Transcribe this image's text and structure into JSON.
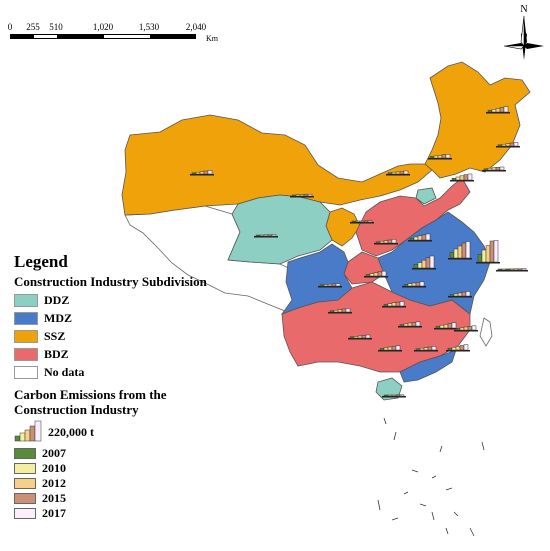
{
  "scale_bar": {
    "labels": [
      "0",
      "255",
      "510",
      "1,020",
      "1,530",
      "2,040"
    ],
    "unit": "Km"
  },
  "north_arrow": {
    "label": "N",
    "icon": "north-arrow-icon"
  },
  "legend": {
    "title": "Legend",
    "subdivision_heading": "Construction Industry Subdivision",
    "subdivision_items": [
      {
        "label": "DDZ",
        "color": "#8ecfc4"
      },
      {
        "label": "MDZ",
        "color": "#4a7bc8"
      },
      {
        "label": "SSZ",
        "color": "#f0a20a"
      },
      {
        "label": "BDZ",
        "color": "#e96a6a"
      },
      {
        "label": "No data",
        "color": "#ffffff"
      }
    ],
    "emissions_heading": "Carbon Emissions from the Construction Industry",
    "size_label": "220,000 t",
    "years": [
      {
        "label": "2007",
        "color": "#5a8a3c"
      },
      {
        "label": "2010",
        "color": "#f2efa0"
      },
      {
        "label": "2012",
        "color": "#f6cf88"
      },
      {
        "label": "2015",
        "color": "#c98f78"
      },
      {
        "label": "2017",
        "color": "#fbeefc"
      }
    ]
  },
  "map_colors": {
    "DDZ": "#8ecfc4",
    "MDZ": "#4a7bc8",
    "SSZ": "#f0a20a",
    "BDZ": "#e96a6a",
    "no_data": "#ffffff",
    "border": "#555555"
  },
  "province_bars": [
    {
      "zone": "SSZ",
      "values": [
        0.06,
        0.09,
        0.12,
        0.15,
        0.18
      ]
    },
    {
      "zone": "SSZ",
      "values": [
        0.04,
        0.06,
        0.08,
        0.1,
        0.12
      ]
    },
    {
      "zone": "SSZ",
      "values": [
        0.04,
        0.06,
        0.08,
        0.09,
        0.1
      ]
    },
    {
      "zone": "SSZ",
      "values": [
        0.05,
        0.07,
        0.09,
        0.11,
        0.12
      ]
    },
    {
      "zone": "SSZ",
      "values": [
        0.04,
        0.06,
        0.07,
        0.08,
        0.1
      ]
    },
    {
      "zone": "SSZ",
      "values": [
        0.03,
        0.04,
        0.05,
        0.06,
        0.06
      ]
    },
    {
      "zone": "SSZ",
      "values": [
        0.04,
        0.06,
        0.08,
        0.1,
        0.12
      ]
    },
    {
      "zone": "BDZ",
      "values": [
        0.06,
        0.1,
        0.14,
        0.18,
        0.2
      ]
    },
    {
      "zone": "DDZ",
      "values": [
        0.03,
        0.03,
        0.04,
        0.04,
        0.05
      ]
    },
    {
      "zone": "DDZ",
      "values": [
        0.02,
        0.03,
        0.03,
        0.04,
        0.04
      ]
    },
    {
      "zone": "BDZ",
      "values": [
        0.04,
        0.06,
        0.08,
        0.1,
        0.12
      ]
    },
    {
      "zone": "MDZ",
      "values": [
        0.06,
        0.1,
        0.14,
        0.17,
        0.2
      ]
    },
    {
      "zone": "MDZ",
      "values": [
        0.12,
        0.18,
        0.26,
        0.34,
        0.4
      ]
    },
    {
      "zone": "MDZ",
      "values": [
        0.18,
        0.3,
        0.4,
        0.5,
        0.55
      ]
    },
    {
      "zone": "MDZ",
      "values": [
        0.25,
        0.4,
        0.55,
        0.7,
        0.72
      ]
    },
    {
      "zone": "BDZ",
      "values": [
        0.04,
        0.05,
        0.06,
        0.07,
        0.08
      ]
    },
    {
      "zone": "MDZ",
      "values": [
        0.05,
        0.08,
        0.11,
        0.14,
        0.16
      ]
    },
    {
      "zone": "BDZ",
      "values": [
        0.05,
        0.08,
        0.1,
        0.12,
        0.14
      ]
    },
    {
      "zone": "BDZ",
      "values": [
        0.05,
        0.07,
        0.1,
        0.13,
        0.15
      ]
    },
    {
      "zone": "MDZ",
      "values": [
        0.06,
        0.08,
        0.11,
        0.13,
        0.15
      ]
    },
    {
      "zone": "BDZ",
      "values": [
        0.04,
        0.06,
        0.08,
        0.1,
        0.12
      ]
    },
    {
      "zone": "BDZ",
      "values": [
        0.06,
        0.09,
        0.12,
        0.15,
        0.18
      ]
    },
    {
      "zone": "BDZ",
      "values": [
        0.05,
        0.07,
        0.1,
        0.12,
        0.14
      ]
    },
    {
      "zone": "MDZ",
      "values": [
        0.05,
        0.07,
        0.1,
        0.12,
        0.14
      ]
    },
    {
      "zone": "BDZ",
      "values": [
        0.04,
        0.05,
        0.07,
        0.08,
        0.1
      ]
    },
    {
      "zone": "BDZ",
      "values": [
        0.05,
        0.07,
        0.1,
        0.12,
        0.14
      ]
    },
    {
      "zone": "MDZ",
      "values": [
        0.04,
        0.06,
        0.08,
        0.1,
        0.12
      ]
    },
    {
      "zone": "BDZ",
      "values": [
        0.06,
        0.09,
        0.12,
        0.15,
        0.18
      ]
    },
    {
      "zone": "MDZ",
      "values": [
        0.02,
        0.03,
        0.03,
        0.04,
        0.04
      ]
    },
    {
      "zone": "BDZ",
      "values": [
        0.02,
        0.02,
        0.03,
        0.03,
        0.04
      ]
    },
    {
      "zone": "SSZ",
      "values": [
        0.02,
        0.03,
        0.04,
        0.04,
        0.05
      ]
    }
  ]
}
